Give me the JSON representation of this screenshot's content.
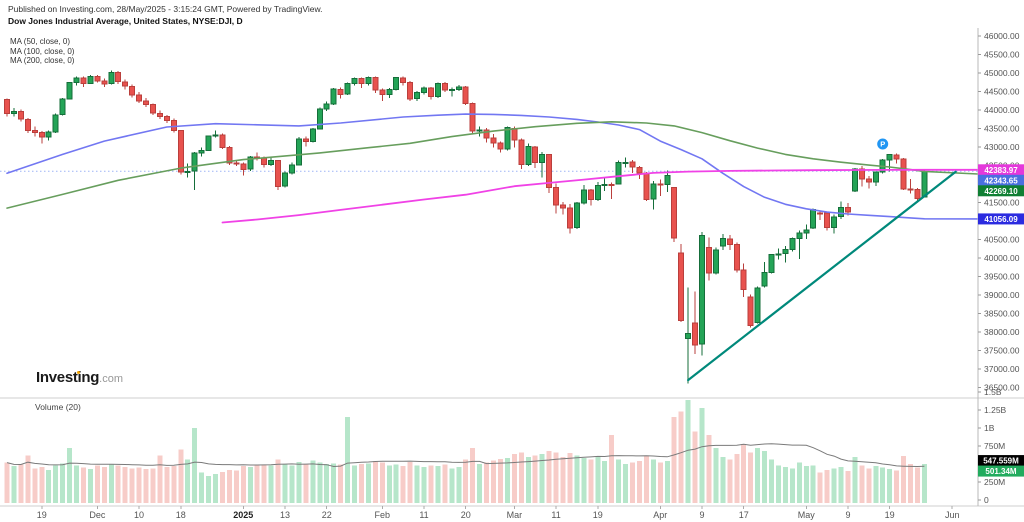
{
  "header": {
    "published": "Published on Investing.com, 28/May/2025 - 3:15:24 GMT, Powered by TradingView.",
    "instrument": "Dow Jones Industrial Average, United States, NYSE:DJI, D"
  },
  "indicators": {
    "ma_labels": [
      "MA (50, close, 0)",
      "MA (100, close, 0)",
      "MA (200, close, 0)"
    ]
  },
  "logo": {
    "brand": "Investing",
    "suffix": ".com"
  },
  "volume_pane": {
    "label": "Volume (20)"
  },
  "chart_data": {
    "type": "candlestick",
    "title": "Dow Jones Industrial Average, United States, NYSE:DJI, D",
    "price_axis": {
      "min": 36500,
      "max": 46000,
      "step": 500,
      "side": "right"
    },
    "volume_axis": {
      "ticks": [
        [
          1500,
          "1.5B"
        ],
        [
          1250,
          "1.25B"
        ],
        [
          1000,
          "1B"
        ],
        [
          750,
          "750M"
        ],
        [
          250,
          "250M"
        ],
        [
          0,
          "0"
        ]
      ],
      "unit": "millions"
    },
    "date_ticks": [
      {
        "i": 5,
        "label": "19"
      },
      {
        "i": 13,
        "label": "Dec"
      },
      {
        "i": 19,
        "label": "10"
      },
      {
        "i": 25,
        "label": "18"
      },
      {
        "i": 34,
        "label": "2025",
        "bold": true
      },
      {
        "i": 40,
        "label": "13"
      },
      {
        "i": 46,
        "label": "22"
      },
      {
        "i": 54,
        "label": "Feb"
      },
      {
        "i": 60,
        "label": "11"
      },
      {
        "i": 66,
        "label": "20"
      },
      {
        "i": 73,
        "label": "Mar"
      },
      {
        "i": 79,
        "label": "11"
      },
      {
        "i": 85,
        "label": "19"
      },
      {
        "i": 94,
        "label": "Apr"
      },
      {
        "i": 100,
        "label": "9"
      },
      {
        "i": 106,
        "label": "17"
      },
      {
        "i": 115,
        "label": "May"
      },
      {
        "i": 121,
        "label": "9"
      },
      {
        "i": 127,
        "label": "19"
      },
      {
        "i": 136,
        "label": "Jun"
      }
    ],
    "candles_format": [
      "open",
      "high",
      "low",
      "close",
      "volume_millions"
    ],
    "candles": [
      [
        44290,
        44310,
        43820,
        43911,
        520
      ],
      [
        43910,
        44050,
        43830,
        43958,
        470
      ],
      [
        43960,
        44020,
        43690,
        43751,
        490
      ],
      [
        43750,
        43780,
        43380,
        43445,
        620
      ],
      [
        43450,
        43560,
        43280,
        43390,
        440
      ],
      [
        43390,
        43430,
        43090,
        43269,
        460
      ],
      [
        43270,
        43450,
        43180,
        43408,
        420
      ],
      [
        43410,
        43900,
        43380,
        43870,
        480
      ],
      [
        43880,
        44320,
        43850,
        44297,
        510
      ],
      [
        44300,
        44760,
        44280,
        44737,
        720
      ],
      [
        44740,
        44910,
        44660,
        44860,
        480
      ],
      [
        44860,
        44900,
        44620,
        44722,
        450
      ],
      [
        44720,
        44940,
        44700,
        44911,
        430
      ],
      [
        44910,
        44950,
        44740,
        44782,
        480
      ],
      [
        44780,
        44850,
        44620,
        44706,
        460
      ],
      [
        44710,
        45073,
        44690,
        45014,
        500
      ],
      [
        45010,
        45060,
        44700,
        44766,
        480
      ],
      [
        44760,
        44820,
        44560,
        44643,
        460
      ],
      [
        44640,
        44690,
        44340,
        44402,
        440
      ],
      [
        44400,
        44480,
        44190,
        44248,
        450
      ],
      [
        44250,
        44320,
        44080,
        44149,
        430
      ],
      [
        44150,
        44180,
        43870,
        43914,
        440
      ],
      [
        43910,
        43990,
        43760,
        43828,
        620
      ],
      [
        43830,
        43870,
        43650,
        43718,
        460
      ],
      [
        43720,
        43770,
        43390,
        43450,
        470
      ],
      [
        43440,
        43460,
        42260,
        42327,
        700
      ],
      [
        42330,
        42560,
        42180,
        42342,
        560
      ],
      [
        42350,
        42870,
        41840,
        42840,
        1000
      ],
      [
        42840,
        42990,
        42740,
        42906,
        380
      ],
      [
        42910,
        43310,
        42900,
        43297,
        330
      ],
      [
        43300,
        43440,
        43260,
        43325,
        360
      ],
      [
        43320,
        43370,
        42950,
        42992,
        390
      ],
      [
        42990,
        43030,
        42520,
        42573,
        420
      ],
      [
        42570,
        42650,
        42480,
        42544,
        410
      ],
      [
        42540,
        42580,
        42230,
        42392,
        470
      ],
      [
        42400,
        42760,
        42350,
        42732,
        460
      ],
      [
        42730,
        42850,
        42640,
        42707,
        480
      ],
      [
        42700,
        42740,
        42440,
        42528,
        490
      ],
      [
        42530,
        42740,
        42480,
        42635,
        480
      ],
      [
        42630,
        42640,
        41840,
        41938,
        560
      ],
      [
        41940,
        42340,
        41900,
        42297,
        500
      ],
      [
        42300,
        42580,
        42260,
        42518,
        480
      ],
      [
        42520,
        43270,
        42500,
        43221,
        530
      ],
      [
        43220,
        43280,
        43020,
        43153,
        490
      ],
      [
        43150,
        43520,
        43120,
        43488,
        550
      ],
      [
        43490,
        44070,
        43470,
        44025,
        520
      ],
      [
        44030,
        44230,
        43970,
        44156,
        500
      ],
      [
        44160,
        44600,
        44140,
        44565,
        510
      ],
      [
        44560,
        44610,
        44310,
        44424,
        490
      ],
      [
        44430,
        44740,
        44400,
        44713,
        1150
      ],
      [
        44710,
        44880,
        44660,
        44850,
        480
      ],
      [
        44850,
        44880,
        44600,
        44713,
        500
      ],
      [
        44710,
        44900,
        44660,
        44882,
        510
      ],
      [
        44880,
        44900,
        44460,
        44544,
        540
      ],
      [
        44540,
        44580,
        44250,
        44421,
        520
      ],
      [
        44420,
        44590,
        44320,
        44556,
        480
      ],
      [
        44560,
        44880,
        44530,
        44873,
        490
      ],
      [
        44870,
        44900,
        44660,
        44747,
        470
      ],
      [
        44740,
        44780,
        44240,
        44303,
        530
      ],
      [
        44310,
        44510,
        44250,
        44470,
        480
      ],
      [
        44470,
        44640,
        44420,
        44593,
        460
      ],
      [
        44590,
        44620,
        44290,
        44368,
        480
      ],
      [
        44370,
        44740,
        44330,
        44711,
        470
      ],
      [
        44710,
        44760,
        44480,
        44546,
        490
      ],
      [
        44550,
        44610,
        44370,
        44556,
        440
      ],
      [
        44560,
        44680,
        44510,
        44627,
        460
      ],
      [
        44620,
        44650,
        44130,
        44176,
        560
      ],
      [
        44170,
        44200,
        43380,
        43428,
        720
      ],
      [
        43430,
        43560,
        43290,
        43461,
        500
      ],
      [
        43460,
        43510,
        43120,
        43240,
        520
      ],
      [
        43240,
        43350,
        42980,
        43106,
        550
      ],
      [
        43110,
        43150,
        42850,
        42941,
        570
      ],
      [
        42950,
        43560,
        42900,
        43521,
        580
      ],
      [
        43500,
        43560,
        42990,
        43191,
        640
      ],
      [
        43190,
        43230,
        42400,
        42521,
        660
      ],
      [
        42530,
        43090,
        42480,
        43007,
        600
      ],
      [
        43000,
        43030,
        42430,
        42579,
        620
      ],
      [
        42580,
        42870,
        42170,
        42802,
        640
      ],
      [
        42800,
        42810,
        41760,
        41912,
        680
      ],
      [
        41910,
        42020,
        41200,
        41433,
        660
      ],
      [
        41430,
        41510,
        41180,
        41350,
        600
      ],
      [
        41350,
        41460,
        40661,
        40814,
        650
      ],
      [
        40820,
        41510,
        40790,
        41488,
        620
      ],
      [
        41490,
        41970,
        41440,
        41841,
        580
      ],
      [
        41840,
        41860,
        41420,
        41581,
        560
      ],
      [
        41580,
        42060,
        41540,
        41964,
        600
      ],
      [
        41960,
        42170,
        41810,
        41985,
        540
      ],
      [
        41990,
        42040,
        41600,
        41985,
        900
      ],
      [
        42000,
        42630,
        41980,
        42583,
        560
      ],
      [
        42580,
        42720,
        42440,
        42587,
        500
      ],
      [
        42590,
        42650,
        42300,
        42455,
        520
      ],
      [
        42450,
        42490,
        42140,
        42299,
        540
      ],
      [
        42300,
        42330,
        41540,
        41584,
        620
      ],
      [
        41590,
        42080,
        41310,
        42002,
        560
      ],
      [
        42000,
        42120,
        41680,
        41990,
        520
      ],
      [
        41990,
        42370,
        41780,
        42225,
        540
      ],
      [
        41900,
        41910,
        40430,
        40546,
        1150
      ],
      [
        40140,
        40380,
        38265,
        38315,
        1230
      ],
      [
        37820,
        39207,
        36612,
        37966,
        1390
      ],
      [
        38250,
        39100,
        37400,
        37646,
        950
      ],
      [
        37680,
        40700,
        37370,
        40608,
        1280
      ],
      [
        40280,
        40560,
        39390,
        39594,
        900
      ],
      [
        39600,
        40280,
        39550,
        40212,
        720
      ],
      [
        40320,
        40650,
        40220,
        40525,
        600
      ],
      [
        40520,
        40620,
        40220,
        40369,
        560
      ],
      [
        40370,
        40420,
        39610,
        39669,
        640
      ],
      [
        39670,
        39850,
        38950,
        39142,
        780
      ],
      [
        38950,
        39010,
        38120,
        38170,
        660
      ],
      [
        38260,
        39230,
        38230,
        39187,
        720
      ],
      [
        39250,
        39890,
        39200,
        39606,
        680
      ],
      [
        39610,
        40110,
        39580,
        40093,
        560
      ],
      [
        40090,
        40260,
        39960,
        40113,
        480
      ],
      [
        40120,
        40330,
        39880,
        40228,
        460
      ],
      [
        40230,
        40560,
        40180,
        40528,
        440
      ],
      [
        40530,
        40740,
        39970,
        40669,
        520
      ],
      [
        40680,
        40900,
        40520,
        40753,
        470
      ],
      [
        40810,
        41340,
        40790,
        41317,
        480
      ],
      [
        41220,
        41290,
        41030,
        41219,
        380
      ],
      [
        41210,
        41250,
        40750,
        40829,
        420
      ],
      [
        40830,
        41180,
        40660,
        41114,
        440
      ],
      [
        41120,
        41530,
        41050,
        41368,
        460
      ],
      [
        41370,
        41490,
        41150,
        41249,
        400
      ],
      [
        41810,
        42430,
        41790,
        42410,
        600
      ],
      [
        42400,
        42480,
        41930,
        42140,
        480
      ],
      [
        42140,
        42220,
        41880,
        42051,
        440
      ],
      [
        42060,
        42340,
        41950,
        42322,
        470
      ],
      [
        42330,
        42680,
        42280,
        42655,
        450
      ],
      [
        42650,
        42810,
        42340,
        42792,
        430
      ],
      [
        42790,
        42820,
        42560,
        42677,
        410
      ],
      [
        42670,
        42700,
        41840,
        41860,
        610
      ],
      [
        41860,
        42130,
        41750,
        41859,
        500
      ],
      [
        41850,
        41890,
        41530,
        41603,
        450
      ],
      [
        41650,
        42360,
        41630,
        42344,
        501
      ]
    ],
    "ma50": {
      "color": "#7277f2",
      "points": [
        [
          0,
          42290
        ],
        [
          8,
          42800
        ],
        [
          14,
          43160
        ],
        [
          23,
          43540
        ],
        [
          30,
          43630
        ],
        [
          36,
          43600
        ],
        [
          42,
          43570
        ],
        [
          48,
          43650
        ],
        [
          57,
          43810
        ],
        [
          62,
          43860
        ],
        [
          66,
          43890
        ],
        [
          70,
          43880
        ],
        [
          74,
          43855
        ],
        [
          78,
          43810
        ],
        [
          82,
          43745
        ],
        [
          85,
          43675
        ],
        [
          88,
          43595
        ],
        [
          91,
          43470
        ],
        [
          94,
          43160
        ],
        [
          97,
          42930
        ],
        [
          100,
          42680
        ],
        [
          103,
          42290
        ],
        [
          106,
          41930
        ],
        [
          109,
          41640
        ],
        [
          112,
          41450
        ],
        [
          115,
          41330
        ],
        [
          118,
          41240
        ],
        [
          121,
          41190
        ],
        [
          124,
          41155
        ],
        [
          127,
          41120
        ],
        [
          130,
          41085
        ],
        [
          132,
          41060
        ],
        [
          139.7,
          41056
        ]
      ]
    },
    "ma100": {
      "color": "#679e5d",
      "points": [
        [
          0,
          41350
        ],
        [
          8,
          41720
        ],
        [
          16,
          42100
        ],
        [
          25,
          42430
        ],
        [
          34,
          42660
        ],
        [
          45,
          42840
        ],
        [
          52,
          42980
        ],
        [
          58,
          43100
        ],
        [
          64,
          43280
        ],
        [
          70,
          43430
        ],
        [
          76,
          43550
        ],
        [
          82,
          43640
        ],
        [
          87,
          43680
        ],
        [
          92,
          43650
        ],
        [
          96,
          43570
        ],
        [
          100,
          43390
        ],
        [
          104,
          43170
        ],
        [
          108,
          42970
        ],
        [
          112,
          42800
        ],
        [
          116,
          42680
        ],
        [
          120,
          42590
        ],
        [
          124,
          42510
        ],
        [
          127,
          42460
        ],
        [
          130,
          42390
        ],
        [
          132,
          42340
        ],
        [
          139.7,
          42269
        ]
      ]
    },
    "ma200": {
      "color": "#f042e6",
      "points": [
        [
          31,
          40960
        ],
        [
          36,
          41040
        ],
        [
          42,
          41160
        ],
        [
          48,
          41300
        ],
        [
          54,
          41440
        ],
        [
          60,
          41580
        ],
        [
          66,
          41710
        ],
        [
          73,
          41940
        ],
        [
          78,
          42030
        ],
        [
          83,
          42120
        ],
        [
          88,
          42210
        ],
        [
          93,
          42300
        ],
        [
          98,
          42335
        ],
        [
          104,
          42355
        ],
        [
          110,
          42365
        ],
        [
          116,
          42372
        ],
        [
          122,
          42378
        ],
        [
          127,
          42382
        ],
        [
          132,
          42384
        ],
        [
          139.7,
          42384
        ]
      ]
    },
    "trendline": {
      "color": "#00897b",
      "i1": 98,
      "p1": 36700,
      "i2": 136.5,
      "p2": 42330
    },
    "marker": {
      "i": 126,
      "price": 43080,
      "label": "P",
      "color": "#2196f3"
    },
    "last_price_line": {
      "value": 42343.65,
      "color": "#9db4f5"
    },
    "price_badges": [
      {
        "text": "42383.97",
        "value": 42383.97,
        "bg": "#e438db",
        "fg": "#ffffff"
      },
      {
        "text": "42343.65",
        "value": 42343.65,
        "bg": "#4a6fe0",
        "fg": "#ffffff"
      },
      {
        "text": "42269.10",
        "value": 42269.1,
        "bg": "#0f7f33",
        "fg": "#ffffff"
      },
      {
        "text": "41056.09",
        "value": 41056.09,
        "bg": "#2b2be0",
        "fg": "#ffffff"
      }
    ],
    "volume_badges": [
      {
        "text": "547.559M",
        "value": 547.559,
        "bg": "#000000",
        "fg": "#ffffff"
      },
      {
        "text": "501.34M",
        "value": 501.34,
        "bg": "#22ab5e",
        "fg": "#ffffff"
      }
    ],
    "colors": {
      "up_fill": "#24a457",
      "up_border": "#156e3a",
      "down_fill": "#e8524e",
      "down_border": "#ba3f3c",
      "vol_up": "#aee3c4",
      "vol_down": "#f6c6c2",
      "vol_ma": "#7a7a7a",
      "axis_text": "#555555",
      "grid": "#cccccc"
    }
  }
}
